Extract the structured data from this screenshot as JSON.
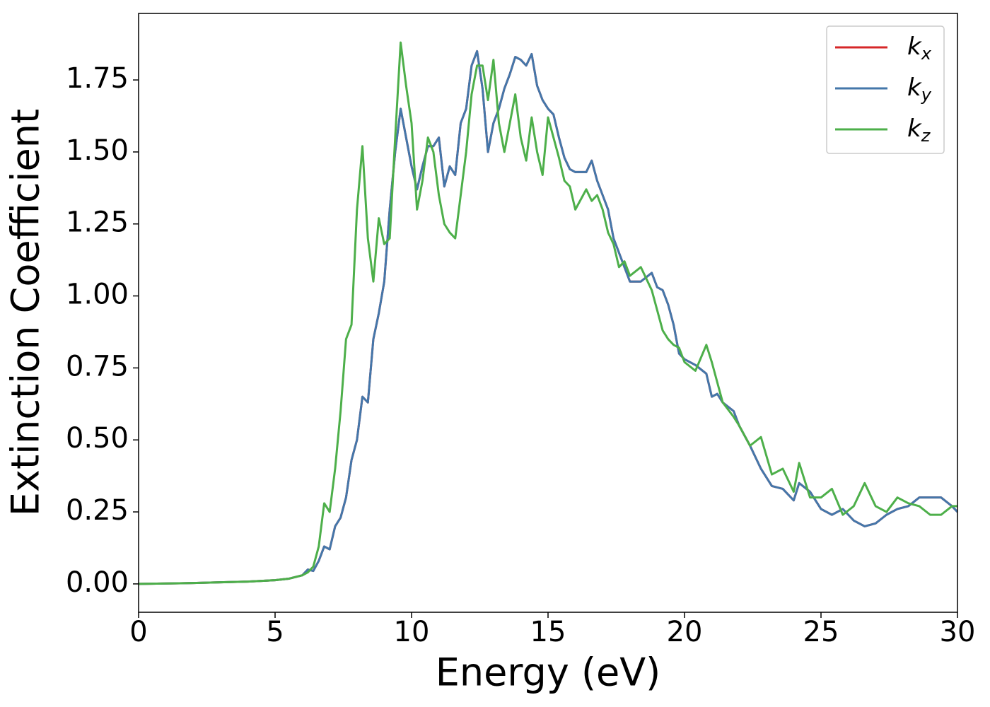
{
  "chart_data": {
    "type": "line",
    "xlabel": "Energy (eV)",
    "ylabel": "Extinction Coefficient",
    "x": [
      0,
      2,
      4,
      5,
      5.5,
      6,
      6.2,
      6.4,
      6.6,
      6.8,
      7.0,
      7.2,
      7.4,
      7.6,
      7.8,
      8.0,
      8.2,
      8.4,
      8.6,
      8.8,
      9.0,
      9.2,
      9.4,
      9.6,
      9.8,
      10.0,
      10.2,
      10.4,
      10.6,
      10.8,
      11.0,
      11.2,
      11.4,
      11.6,
      11.8,
      12.0,
      12.2,
      12.4,
      12.6,
      12.8,
      13.0,
      13.2,
      13.4,
      13.6,
      13.8,
      14.0,
      14.2,
      14.4,
      14.6,
      14.8,
      15.0,
      15.2,
      15.4,
      15.6,
      15.8,
      16.0,
      16.4,
      16.6,
      16.8,
      17.0,
      17.2,
      17.4,
      17.6,
      17.8,
      18.0,
      18.4,
      18.8,
      19.0,
      19.2,
      19.4,
      19.6,
      19.8,
      20.0,
      20.4,
      20.8,
      21.0,
      21.2,
      21.4,
      21.8,
      22.0,
      22.4,
      22.8,
      23.2,
      23.6,
      24.0,
      24.2,
      24.6,
      25.0,
      25.4,
      25.8,
      26.2,
      26.6,
      27.0,
      27.4,
      27.8,
      28.2,
      28.6,
      29.0,
      29.4,
      29.8,
      30.0
    ],
    "series": [
      {
        "name": "kx",
        "color": "#d62728",
        "values": [
          0,
          0.003,
          0.008,
          0.013,
          0.018,
          0.03,
          0.05,
          0.045,
          0.08,
          0.13,
          0.12,
          0.2,
          0.23,
          0.3,
          0.43,
          0.5,
          0.65,
          0.63,
          0.85,
          0.94,
          1.05,
          1.3,
          1.5,
          1.65,
          1.55,
          1.45,
          1.37,
          1.45,
          1.52,
          1.52,
          1.55,
          1.38,
          1.45,
          1.42,
          1.6,
          1.65,
          1.8,
          1.85,
          1.72,
          1.5,
          1.6,
          1.65,
          1.72,
          1.77,
          1.83,
          1.82,
          1.8,
          1.84,
          1.73,
          1.68,
          1.65,
          1.63,
          1.55,
          1.48,
          1.44,
          1.43,
          1.43,
          1.47,
          1.4,
          1.35,
          1.3,
          1.2,
          1.15,
          1.1,
          1.05,
          1.05,
          1.08,
          1.03,
          1.02,
          0.97,
          0.9,
          0.8,
          0.78,
          0.76,
          0.73,
          0.65,
          0.66,
          0.63,
          0.6,
          0.55,
          0.48,
          0.4,
          0.34,
          0.33,
          0.29,
          0.35,
          0.32,
          0.26,
          0.24,
          0.26,
          0.22,
          0.2,
          0.21,
          0.24,
          0.26,
          0.27,
          0.3,
          0.3,
          0.3,
          0.27,
          0.25
        ]
      },
      {
        "name": "ky",
        "color": "#4477aa",
        "values": [
          0,
          0.003,
          0.008,
          0.013,
          0.018,
          0.03,
          0.05,
          0.045,
          0.08,
          0.13,
          0.12,
          0.2,
          0.23,
          0.3,
          0.43,
          0.5,
          0.65,
          0.63,
          0.85,
          0.94,
          1.05,
          1.3,
          1.5,
          1.65,
          1.55,
          1.45,
          1.37,
          1.45,
          1.52,
          1.52,
          1.55,
          1.38,
          1.45,
          1.42,
          1.6,
          1.65,
          1.8,
          1.85,
          1.72,
          1.5,
          1.6,
          1.65,
          1.72,
          1.77,
          1.83,
          1.82,
          1.8,
          1.84,
          1.73,
          1.68,
          1.65,
          1.63,
          1.55,
          1.48,
          1.44,
          1.43,
          1.43,
          1.47,
          1.4,
          1.35,
          1.3,
          1.2,
          1.15,
          1.1,
          1.05,
          1.05,
          1.08,
          1.03,
          1.02,
          0.97,
          0.9,
          0.8,
          0.78,
          0.76,
          0.73,
          0.65,
          0.66,
          0.63,
          0.6,
          0.55,
          0.48,
          0.4,
          0.34,
          0.33,
          0.29,
          0.35,
          0.32,
          0.26,
          0.24,
          0.26,
          0.22,
          0.2,
          0.21,
          0.24,
          0.26,
          0.27,
          0.3,
          0.3,
          0.3,
          0.27,
          0.25
        ]
      },
      {
        "name": "kz",
        "color": "#4daf4a",
        "values": [
          0,
          0.003,
          0.008,
          0.013,
          0.018,
          0.03,
          0.04,
          0.06,
          0.13,
          0.28,
          0.25,
          0.4,
          0.6,
          0.85,
          0.9,
          1.3,
          1.52,
          1.2,
          1.05,
          1.27,
          1.18,
          1.2,
          1.55,
          1.88,
          1.73,
          1.6,
          1.3,
          1.4,
          1.55,
          1.5,
          1.35,
          1.25,
          1.22,
          1.2,
          1.35,
          1.5,
          1.7,
          1.8,
          1.8,
          1.68,
          1.82,
          1.6,
          1.5,
          1.6,
          1.7,
          1.55,
          1.47,
          1.62,
          1.5,
          1.42,
          1.62,
          1.55,
          1.48,
          1.4,
          1.38,
          1.3,
          1.37,
          1.33,
          1.35,
          1.3,
          1.22,
          1.18,
          1.1,
          1.12,
          1.07,
          1.1,
          1.02,
          0.95,
          0.88,
          0.85,
          0.83,
          0.82,
          0.77,
          0.74,
          0.83,
          0.77,
          0.7,
          0.63,
          0.58,
          0.55,
          0.48,
          0.51,
          0.38,
          0.4,
          0.32,
          0.42,
          0.3,
          0.3,
          0.33,
          0.24,
          0.27,
          0.35,
          0.27,
          0.25,
          0.3,
          0.28,
          0.27,
          0.24,
          0.24,
          0.27,
          0.27
        ]
      }
    ],
    "xlim": [
      0,
      30
    ],
    "xticks": [
      0,
      5,
      10,
      15,
      20,
      25,
      30
    ],
    "ylim": [
      -0.0985,
      1.981
    ],
    "yticks": [
      {
        "value": 0,
        "label": "0.00"
      },
      {
        "value": 0.25,
        "label": "0.25"
      },
      {
        "value": 0.5,
        "label": "0.50"
      },
      {
        "value": 0.75,
        "label": "0.75"
      },
      {
        "value": 1,
        "label": "1.00"
      },
      {
        "value": 1.25,
        "label": "1.25"
      },
      {
        "value": 1.5,
        "label": "1.50"
      },
      {
        "value": 1.75,
        "label": "1.75"
      }
    ],
    "grid": false,
    "legend": "upper right"
  }
}
